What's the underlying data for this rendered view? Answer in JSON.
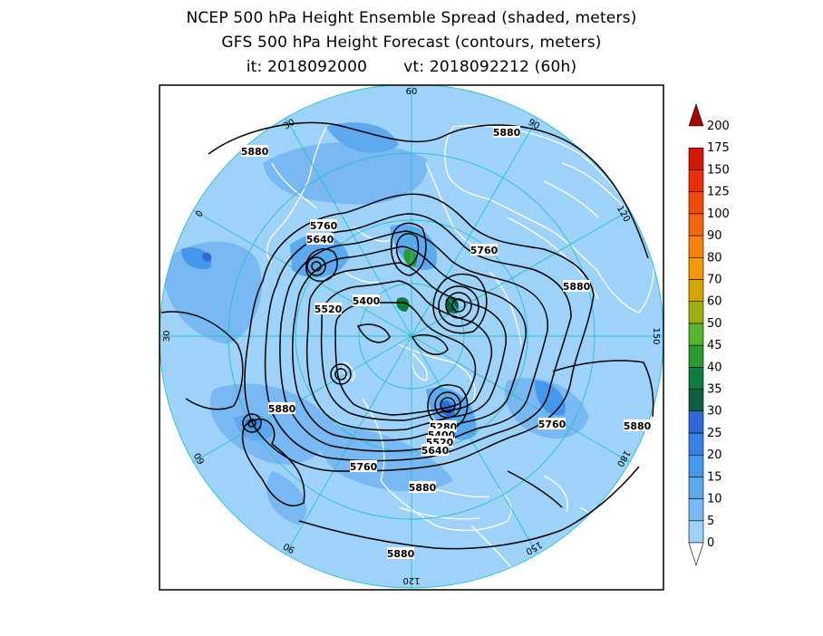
{
  "title": {
    "line1": "NCEP 500 hPa Height Ensemble Spread (shaded, meters)",
    "line2": "GFS 500 hPa Height Forecast (contours, meters)",
    "init": "it: 2018092000",
    "valid": "vt: 2018092212 (60h)"
  },
  "map": {
    "projection": "north-polar-stereographic",
    "colors": {
      "background": "#9fd2f9",
      "coast": "#ffffff",
      "grid": "#27c0c7",
      "contour": "#000000",
      "frame": "#000000"
    },
    "meridian_labels": [
      {
        "text": "60",
        "lon": 60
      },
      {
        "text": "30",
        "lon": 30
      },
      {
        "text": "0",
        "lon": 0
      },
      {
        "text": "30",
        "lon": -30
      },
      {
        "text": "60",
        "lon": -60
      },
      {
        "text": "90",
        "lon": -90
      },
      {
        "text": "120",
        "lon": -120
      },
      {
        "text": "150",
        "lon": -150
      },
      {
        "text": "180",
        "lon": 180
      },
      {
        "text": "150",
        "lon": 150
      },
      {
        "text": "120",
        "lon": 120
      },
      {
        "text": "90",
        "lon": 90
      }
    ],
    "contour_labels": [
      "5880",
      "5880",
      "5760",
      "5640",
      "5760",
      "5880",
      "5400",
      "5520",
      "5880",
      "5760",
      "5880",
      "5280",
      "5400",
      "5520",
      "5640",
      "5760",
      "5880",
      "5880"
    ]
  },
  "colorbar": {
    "levels": [
      "0",
      "5",
      "10",
      "15",
      "20",
      "25",
      "30",
      "35",
      "40",
      "45",
      "50",
      "60",
      "70",
      "80",
      "90",
      "100",
      "125",
      "150",
      "175",
      "200"
    ],
    "colors": [
      "#ffffff",
      "#9fd2f9",
      "#79b8f2",
      "#5ea8ee",
      "#4597ec",
      "#3b80e6",
      "#2f66d8",
      "#0f5e40",
      "#0f7b3c",
      "#2a9a35",
      "#56b52b",
      "#9fae0d",
      "#d7a405",
      "#f39a0a",
      "#f5820d",
      "#f2640d",
      "#ef4a0b",
      "#e82f09",
      "#d21607",
      "#a00a04"
    ]
  }
}
